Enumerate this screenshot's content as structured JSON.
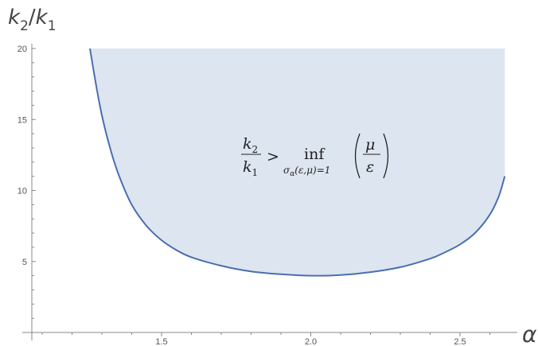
{
  "chart_data": {
    "type": "area",
    "title": "",
    "xlabel": "α",
    "ylabel": "k2/k1",
    "xlim": [
      1.0,
      2.7
    ],
    "ylim": [
      0,
      21
    ],
    "x_ticks": [
      1.5,
      2.0,
      2.5
    ],
    "x_tick_labels": [
      "1.5",
      "2.0",
      "2.5"
    ],
    "y_ticks": [
      5,
      10,
      15,
      20
    ],
    "y_tick_labels": [
      "5",
      "10",
      "15",
      "20"
    ],
    "shaded_region": {
      "description_label": "k2/k1 > inf_{σα(ε,μ)=1} (μ/ε)",
      "upper_bound": 20
    },
    "series": [
      {
        "x": [
          1.26,
          1.28,
          1.3,
          1.33,
          1.36,
          1.4,
          1.45,
          1.5,
          1.55,
          1.6,
          1.7,
          1.8,
          1.9,
          2.0,
          2.1,
          2.2,
          2.3,
          2.4,
          2.45,
          2.5,
          2.55,
          2.6,
          2.63,
          2.65
        ],
        "y": [
          20.0,
          17.5,
          15.3,
          12.8,
          10.9,
          9.0,
          7.5,
          6.5,
          5.8,
          5.3,
          4.7,
          4.3,
          4.1,
          4.0,
          4.05,
          4.25,
          4.6,
          5.2,
          5.65,
          6.2,
          7.0,
          8.3,
          9.6,
          11.0
        ]
      }
    ],
    "colors": {
      "curve": "#4a6fb0",
      "fill": "#dde5f0",
      "axis": "#888888"
    },
    "annotation": {
      "lhs_num": "k",
      "lhs_num_sub": "2",
      "lhs_den": "k",
      "lhs_den_sub": "1",
      "relation": ">",
      "operator": "inf",
      "subscript": "σ",
      "subscript_sub": "α",
      "subscript_rest": "(ε,μ)=1",
      "rhs_num": "μ",
      "rhs_den": "ε"
    },
    "axis_title_parts": {
      "y_k": "k",
      "y_sub2": "2",
      "y_slash": "/",
      "y_k2": "k",
      "y_sub1": "1",
      "x": "α"
    }
  }
}
